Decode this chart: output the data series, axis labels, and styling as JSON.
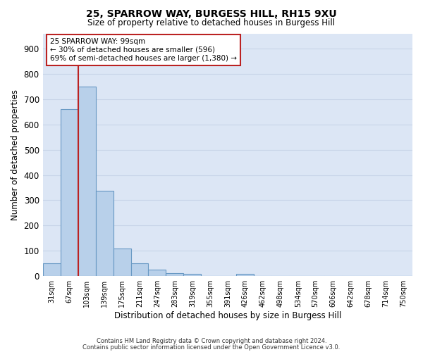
{
  "title_line1": "25, SPARROW WAY, BURGESS HILL, RH15 9XU",
  "title_line2": "Size of property relative to detached houses in Burgess Hill",
  "xlabel": "Distribution of detached houses by size in Burgess Hill",
  "ylabel": "Number of detached properties",
  "footer_line1": "Contains HM Land Registry data © Crown copyright and database right 2024.",
  "footer_line2": "Contains public sector information licensed under the Open Government Licence v3.0.",
  "bar_labels": [
    "31sqm",
    "67sqm",
    "103sqm",
    "139sqm",
    "175sqm",
    "211sqm",
    "247sqm",
    "283sqm",
    "319sqm",
    "355sqm",
    "391sqm",
    "426sqm",
    "462sqm",
    "498sqm",
    "534sqm",
    "570sqm",
    "606sqm",
    "642sqm",
    "678sqm",
    "714sqm",
    "750sqm"
  ],
  "bar_values": [
    50,
    662,
    750,
    338,
    108,
    50,
    25,
    13,
    10,
    0,
    0,
    8,
    0,
    0,
    0,
    0,
    0,
    0,
    0,
    0,
    0
  ],
  "bar_color": "#b8d0ea",
  "bar_edge_color": "#6899c4",
  "grid_color": "#c8d4e8",
  "background_color": "#dce6f5",
  "vline_color": "#bb2222",
  "annotation_text": "25 SPARROW WAY: 99sqm\n← 30% of detached houses are smaller (596)\n69% of semi-detached houses are larger (1,380) →",
  "ylim": [
    0,
    960
  ],
  "yticks": [
    0,
    100,
    200,
    300,
    400,
    500,
    600,
    700,
    800,
    900
  ]
}
